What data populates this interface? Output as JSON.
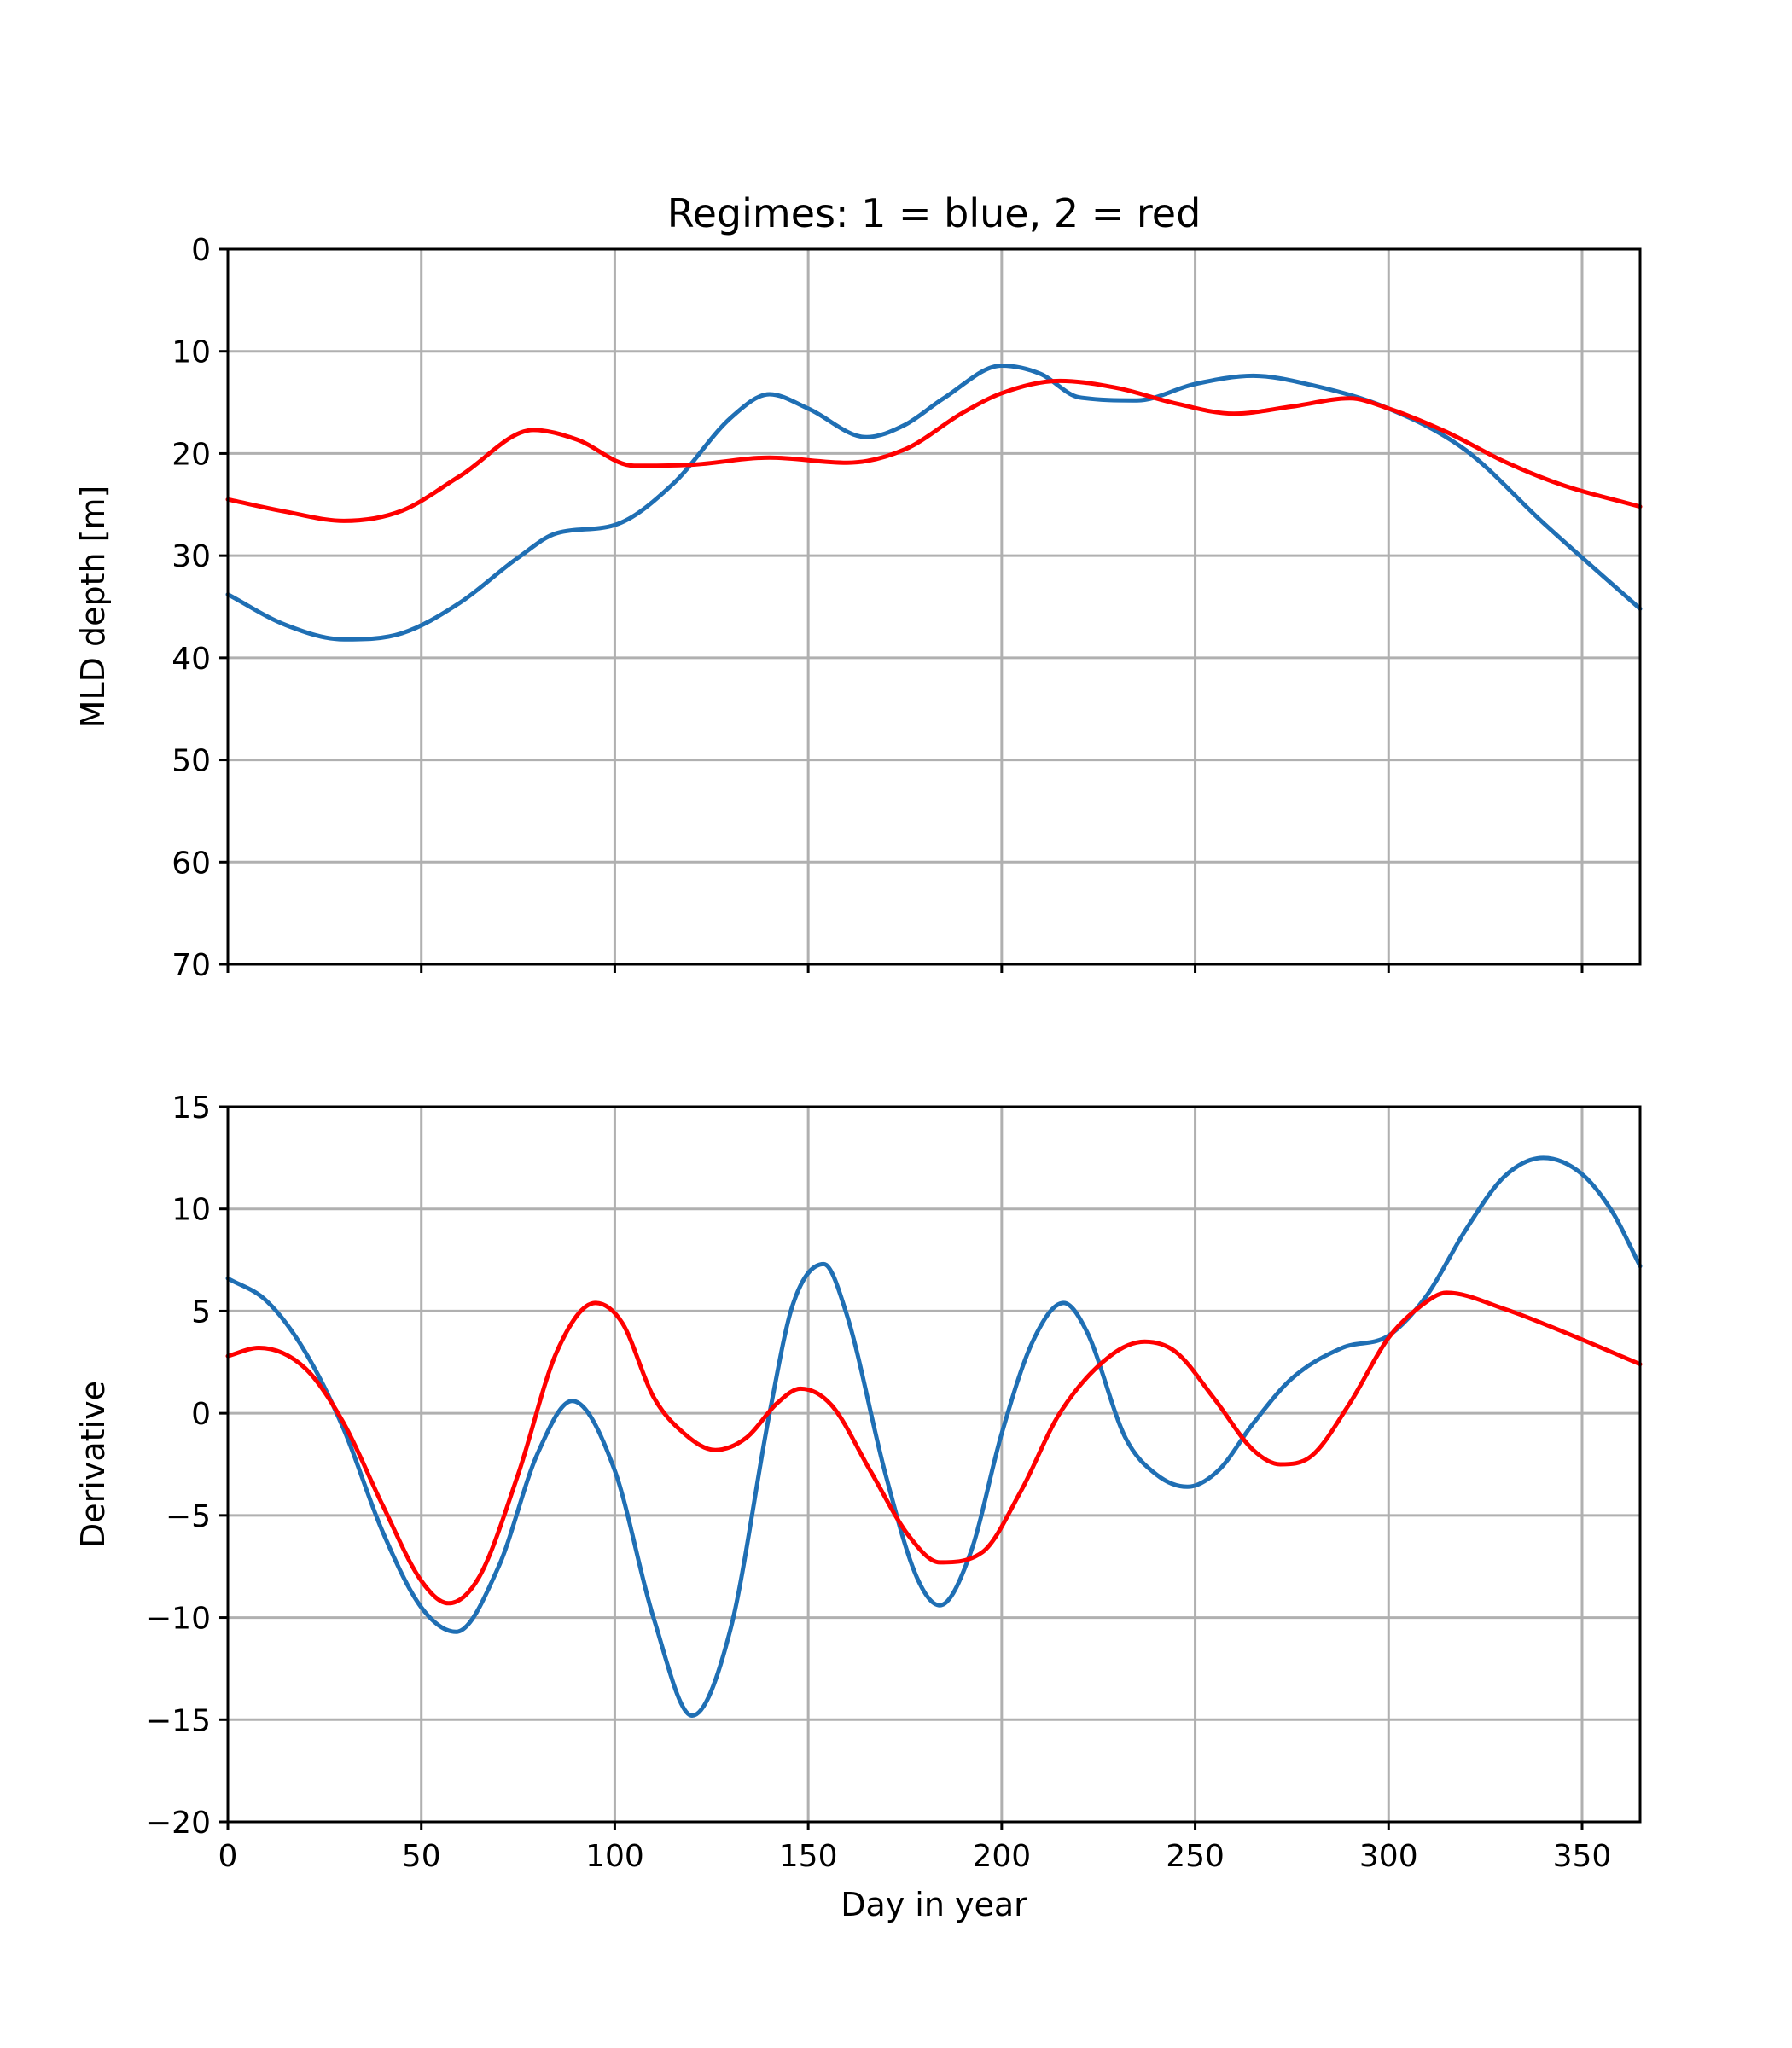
{
  "chart_data": [
    {
      "type": "line",
      "title": "Regimes: 1 = blue, 2 = red",
      "xlabel": "",
      "ylabel": "MLD depth [m]",
      "xlim": [
        0,
        365
      ],
      "ylim": [
        0,
        70
      ],
      "y_inverted": true,
      "grid": true,
      "xticks": [
        0,
        50,
        100,
        150,
        200,
        250,
        300,
        350
      ],
      "xtick_labels_visible": false,
      "yticks": [
        0,
        10,
        20,
        30,
        40,
        50,
        60,
        70
      ],
      "ytick_labels": [
        "0",
        "10",
        "20",
        "30",
        "40",
        "50",
        "60",
        "70"
      ],
      "series": [
        {
          "color": "#1f6fb4",
          "x": [
            0,
            15,
            30,
            45,
            60,
            75,
            85,
            100,
            115,
            130,
            140,
            150,
            165,
            175,
            185,
            200,
            210,
            220,
            235,
            250,
            265,
            280,
            300,
            320,
            340,
            365
          ],
          "y": [
            33.8,
            36.8,
            38.2,
            37.6,
            34.6,
            30.2,
            27.8,
            27.0,
            23.0,
            16.5,
            14.2,
            15.6,
            18.4,
            17.2,
            14.6,
            11.4,
            12.2,
            14.5,
            14.8,
            13.2,
            12.4,
            13.3,
            15.6,
            19.7,
            26.8,
            35.2
          ]
        },
        {
          "color": "#ff0000",
          "x": [
            0,
            15,
            30,
            45,
            60,
            79,
            90,
            105,
            120,
            140,
            160,
            175,
            190,
            200,
            215,
            230,
            245,
            260,
            275,
            290,
            300,
            315,
            330,
            345,
            365
          ],
          "y": [
            24.5,
            25.7,
            26.6,
            25.6,
            22.2,
            17.7,
            18.6,
            21.2,
            21.1,
            20.4,
            20.9,
            19.6,
            16.0,
            14.1,
            12.9,
            13.6,
            15.1,
            16.1,
            15.4,
            14.6,
            15.6,
            17.9,
            20.8,
            23.1,
            25.2
          ]
        }
      ]
    },
    {
      "type": "line",
      "title": "",
      "xlabel": "Day in year",
      "ylabel": "Derivative",
      "xlim": [
        0,
        365
      ],
      "ylim": [
        -20,
        15
      ],
      "grid": true,
      "xticks": [
        0,
        50,
        100,
        150,
        200,
        250,
        300,
        350
      ],
      "xtick_labels": [
        "0",
        "50",
        "100",
        "150",
        "200",
        "250",
        "300",
        "350"
      ],
      "yticks": [
        15,
        10,
        5,
        0,
        -5,
        -10,
        -15,
        -20
      ],
      "ytick_labels": [
        "15",
        "10",
        "5",
        "0",
        "−5",
        "−10",
        "−15",
        "−20"
      ],
      "series": [
        {
          "color": "#1f6fb4",
          "x": [
            0,
            10,
            20,
            30,
            40,
            50,
            59,
            70,
            80,
            89,
            100,
            110,
            120,
            130,
            140,
            146,
            154,
            160,
            170,
            178,
            184,
            192,
            200,
            208,
            216,
            222,
            232,
            240,
            248,
            256,
            265,
            275,
            288,
            300,
            310,
            320,
            330,
            340,
            350,
            358,
            365
          ],
          "y": [
            6.6,
            5.5,
            3.0,
            -0.8,
            -5.8,
            -9.5,
            -10.7,
            -7.5,
            -2.0,
            0.6,
            -2.8,
            -10.0,
            -14.8,
            -10.5,
            0.0,
            5.3,
            7.3,
            4.8,
            -3.0,
            -8.0,
            -9.4,
            -6.8,
            -1.0,
            3.5,
            5.4,
            4.0,
            -1.2,
            -3.0,
            -3.6,
            -2.8,
            -0.5,
            1.7,
            3.2,
            3.8,
            5.8,
            9.0,
            11.6,
            12.5,
            11.7,
            9.8,
            7.2
          ]
        },
        {
          "color": "#ff0000",
          "x": [
            0,
            8,
            20,
            30,
            40,
            50,
            57,
            65,
            75,
            85,
            95,
            102,
            110,
            118,
            126,
            134,
            142,
            148,
            156,
            166,
            176,
            184,
            195,
            205,
            215,
            228,
            237,
            245,
            255,
            265,
            272,
            280,
            290,
            300,
            308,
            315,
            330,
            345,
            365
          ],
          "y": [
            2.8,
            3.2,
            2.2,
            -0.5,
            -4.5,
            -8.2,
            -9.3,
            -8.0,
            -3.0,
            3.0,
            5.4,
            4.4,
            0.8,
            -1.0,
            -1.8,
            -1.2,
            0.5,
            1.2,
            0.4,
            -2.8,
            -6.0,
            -7.3,
            -6.8,
            -3.8,
            0.0,
            2.8,
            3.5,
            3.0,
            0.7,
            -1.8,
            -2.5,
            -2.1,
            0.5,
            3.7,
            5.2,
            5.9,
            5.1,
            4.0,
            2.4
          ]
        }
      ]
    }
  ]
}
